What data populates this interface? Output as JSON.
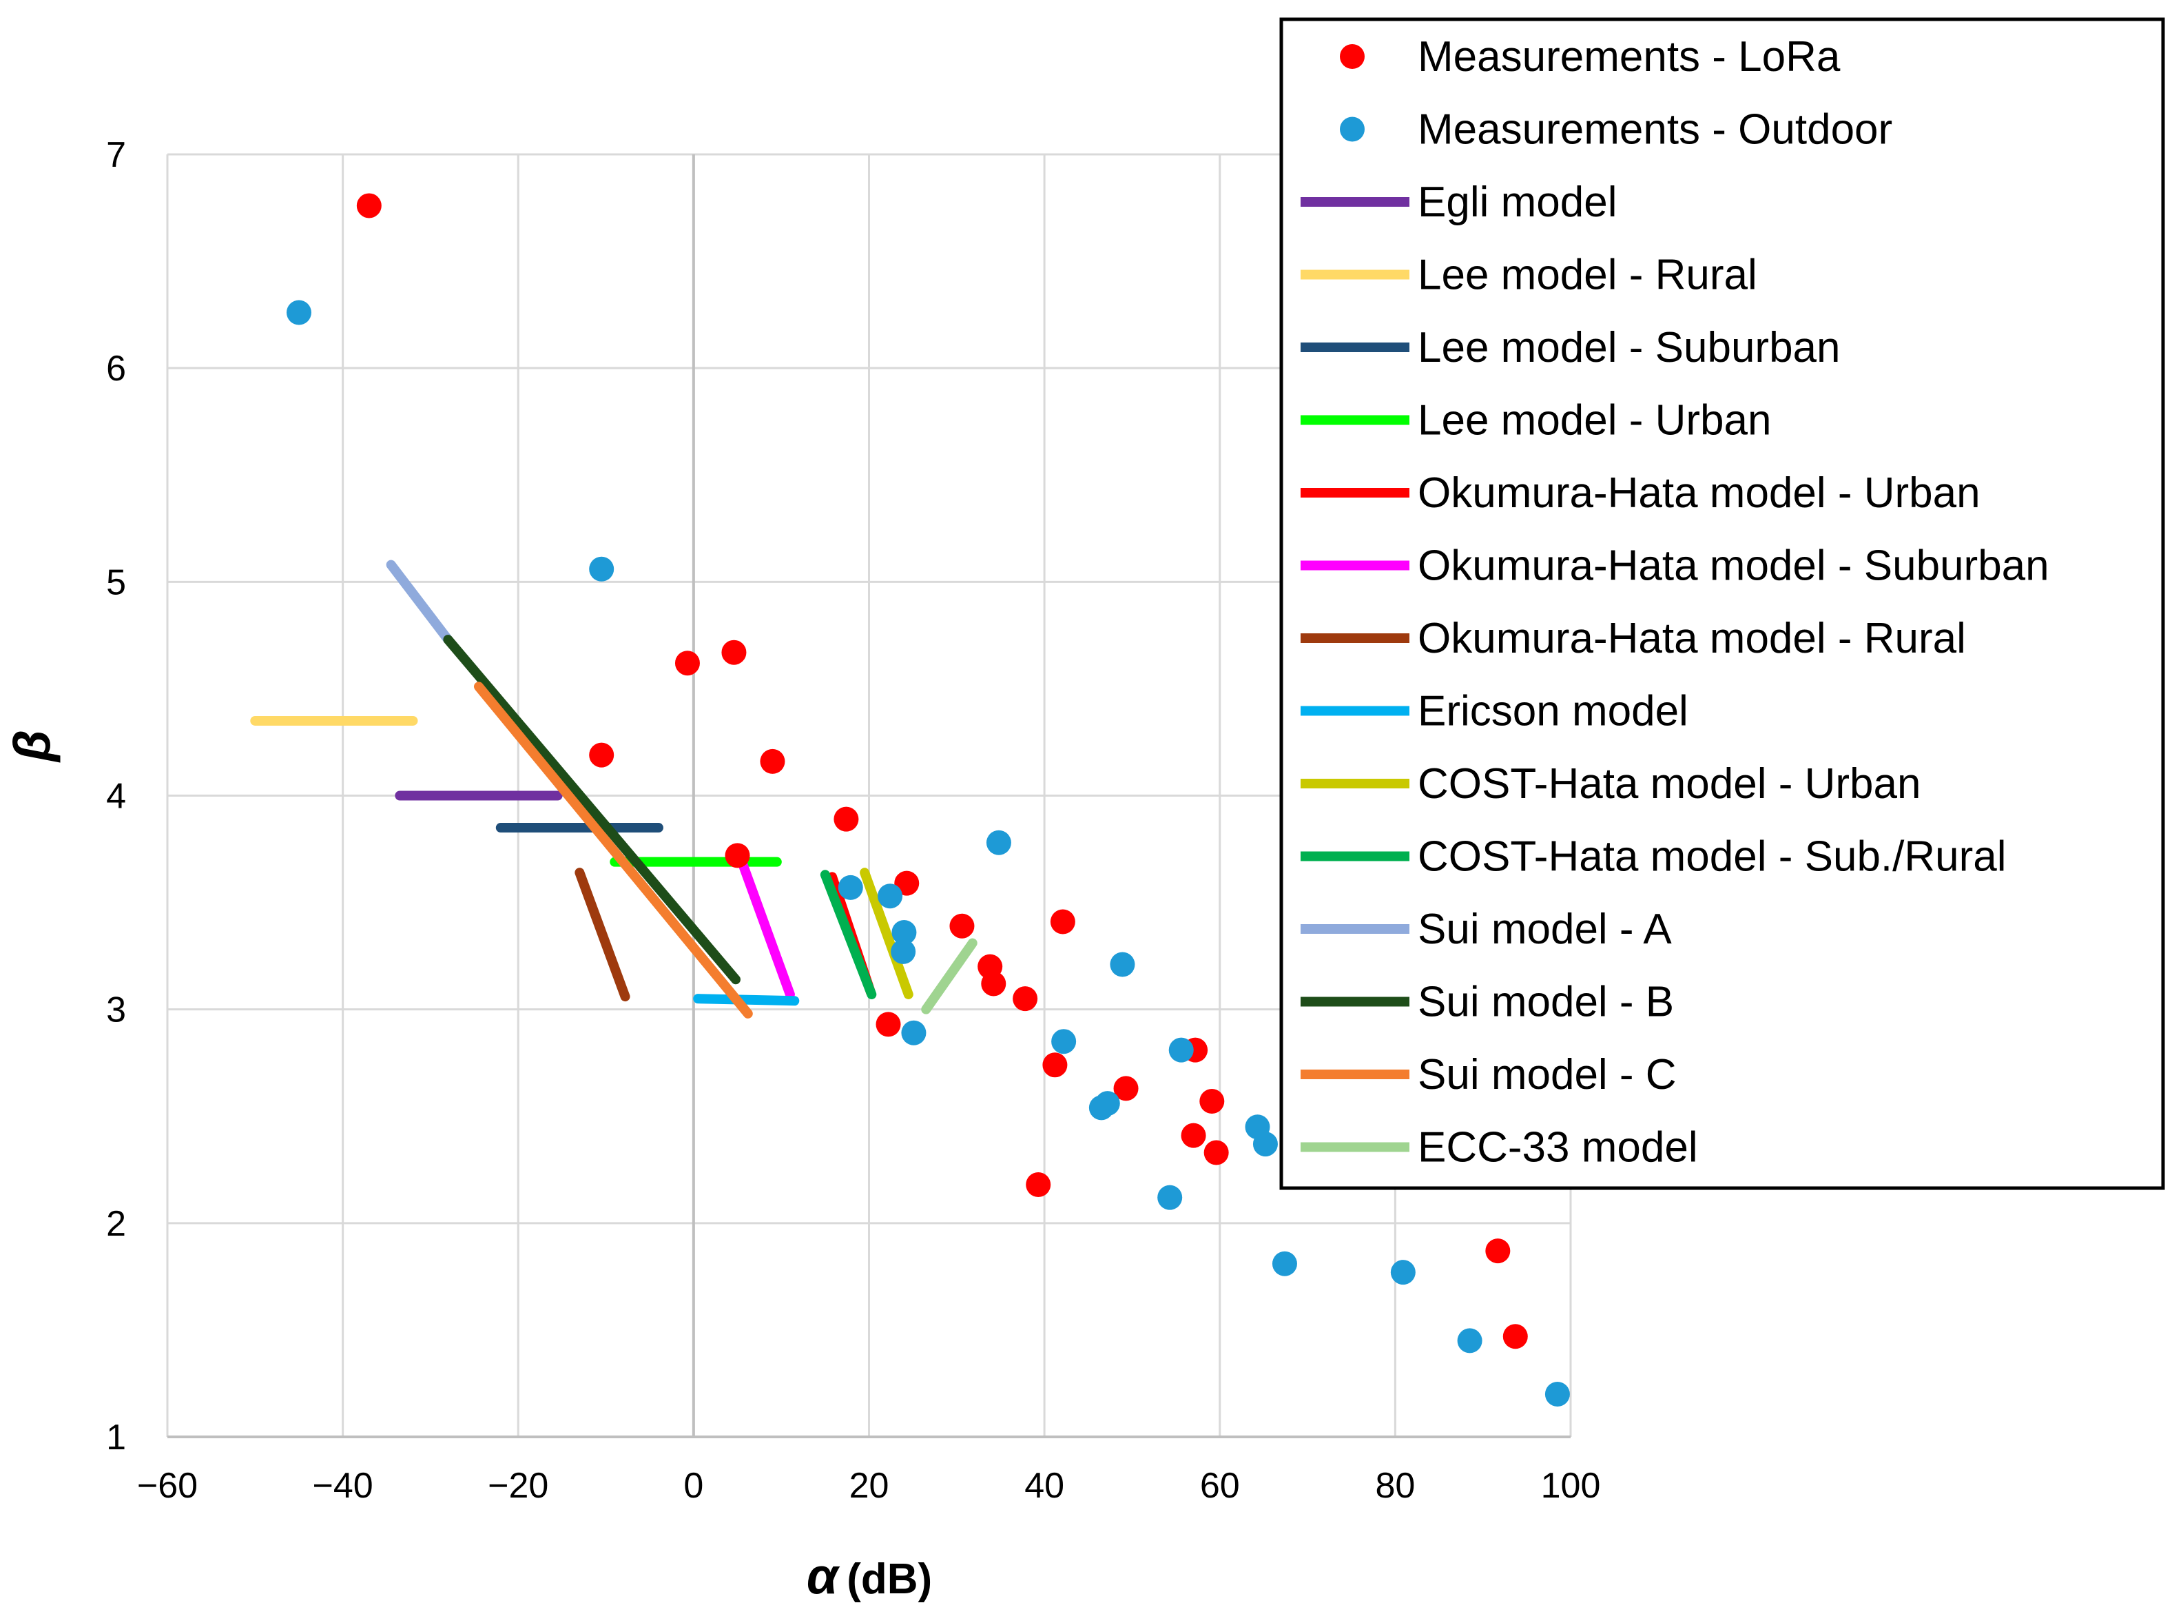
{
  "chart_data": {
    "type": "scatter",
    "xlabel_symbol": "α",
    "xlabel_unit": "(dB)",
    "ylabel": "β",
    "xlim": [
      -60,
      100
    ],
    "ylim": [
      1,
      7
    ],
    "xticks": [
      -60,
      -40,
      -20,
      0,
      20,
      40,
      60,
      80,
      100
    ],
    "yticks": [
      1,
      2,
      3,
      4,
      5,
      6,
      7
    ],
    "grid": true,
    "legend_position": "top-right",
    "scatter_series": [
      {
        "name": "Measurements - LoRa",
        "color": "#ff0000",
        "points": [
          [
            -37,
            6.76
          ],
          [
            -0.7,
            4.62
          ],
          [
            4.6,
            4.67
          ],
          [
            -10.5,
            4.19
          ],
          [
            9,
            4.16
          ],
          [
            5,
            3.72
          ],
          [
            17.4,
            3.89
          ],
          [
            24.3,
            3.59
          ],
          [
            22.2,
            2.93
          ],
          [
            30.6,
            3.39
          ],
          [
            33.8,
            3.2
          ],
          [
            34.2,
            3.12
          ],
          [
            37.8,
            3.05
          ],
          [
            42.1,
            3.41
          ],
          [
            41.2,
            2.74
          ],
          [
            49.3,
            2.63
          ],
          [
            57.2,
            2.81
          ],
          [
            59.1,
            2.57
          ],
          [
            57,
            2.41
          ],
          [
            59.6,
            2.33
          ],
          [
            39.3,
            2.18
          ],
          [
            91.7,
            1.87
          ],
          [
            93.7,
            1.47
          ]
        ]
      },
      {
        "name": "Measurements - Outdoor",
        "color": "#1e9ad6",
        "points": [
          [
            -45,
            6.26
          ],
          [
            -10.5,
            5.06
          ],
          [
            34.8,
            3.78
          ],
          [
            17.9,
            3.57
          ],
          [
            22.4,
            3.53
          ],
          [
            24,
            3.36
          ],
          [
            23.9,
            3.27
          ],
          [
            25.1,
            2.89
          ],
          [
            48.9,
            3.21
          ],
          [
            42.2,
            2.85
          ],
          [
            55.6,
            2.81
          ],
          [
            46.5,
            2.54
          ],
          [
            47.2,
            2.56
          ],
          [
            54.3,
            2.12
          ],
          [
            64.3,
            2.45
          ],
          [
            65.2,
            2.37
          ],
          [
            67.4,
            1.81
          ],
          [
            80.9,
            1.77
          ],
          [
            88.5,
            1.45
          ],
          [
            98.5,
            1.2
          ]
        ]
      }
    ],
    "line_series": [
      {
        "name": "Egli model",
        "color": "#7030a0",
        "points": [
          [
            -33.5,
            4.0
          ],
          [
            -15.5,
            4.0
          ]
        ]
      },
      {
        "name": "Lee model - Rural",
        "color": "#ffd966",
        "points": [
          [
            -50,
            4.35
          ],
          [
            -32,
            4.35
          ]
        ]
      },
      {
        "name": "Lee model - Suburban",
        "color": "#1f4e79",
        "points": [
          [
            -22,
            3.85
          ],
          [
            -4,
            3.85
          ]
        ]
      },
      {
        "name": "Lee model - Urban",
        "color": "#00ff00",
        "points": [
          [
            -9,
            3.69
          ],
          [
            9.5,
            3.69
          ]
        ]
      },
      {
        "name": "Okumura-Hata model - Urban",
        "color": "#ff0000",
        "points": [
          [
            15.8,
            3.62
          ],
          [
            20.2,
            3.08
          ]
        ]
      },
      {
        "name": "Okumura-Hata model - Suburban",
        "color": "#ff00ff",
        "points": [
          [
            5.6,
            3.68
          ],
          [
            11,
            3.07
          ]
        ]
      },
      {
        "name": "Okumura-Hata model - Rural",
        "color": "#9e3a0e",
        "points": [
          [
            -13,
            3.64
          ],
          [
            -7.8,
            3.06
          ]
        ]
      },
      {
        "name": "Ericson model",
        "color": "#00b0f0",
        "points": [
          [
            0.5,
            3.05
          ],
          [
            11.5,
            3.04
          ]
        ]
      },
      {
        "name": "COST-Hata model - Urban",
        "color": "#c9c900",
        "points": [
          [
            19.5,
            3.64
          ],
          [
            24.5,
            3.07
          ]
        ]
      },
      {
        "name": "COST-Hata model - Sub./Rural",
        "color": "#00b050",
        "points": [
          [
            15,
            3.63
          ],
          [
            20.3,
            3.07
          ]
        ]
      },
      {
        "name": "Sui model - A",
        "color": "#8faadc",
        "points": [
          [
            -34.5,
            5.08
          ],
          [
            -28,
            4.73
          ]
        ]
      },
      {
        "name": "Sui model - B",
        "color": "#1e4d19",
        "points": [
          [
            -28,
            4.73
          ],
          [
            4.8,
            3.14
          ]
        ]
      },
      {
        "name": "Sui model - C",
        "color": "#f47d2e",
        "points": [
          [
            -24.5,
            4.51
          ],
          [
            6.2,
            2.98
          ]
        ]
      },
      {
        "name": "ECC-33 model",
        "color": "#9fd490",
        "points": [
          [
            26.5,
            3.0
          ],
          [
            31.8,
            3.31
          ]
        ]
      }
    ],
    "legend": [
      {
        "label": "Measurements - LoRa",
        "kind": "marker",
        "color": "#ff0000"
      },
      {
        "label": "Measurements - Outdoor",
        "kind": "marker",
        "color": "#1e9ad6"
      },
      {
        "label": "Egli model",
        "kind": "line",
        "color": "#7030a0"
      },
      {
        "label": "Lee model - Rural",
        "kind": "line",
        "color": "#ffd966"
      },
      {
        "label": "Lee model - Suburban",
        "kind": "line",
        "color": "#1f4e79"
      },
      {
        "label": "Lee model - Urban",
        "kind": "line",
        "color": "#00ff00"
      },
      {
        "label": "Okumura-Hata model - Urban",
        "kind": "line",
        "color": "#ff0000"
      },
      {
        "label": "Okumura-Hata model - Suburban",
        "kind": "line",
        "color": "#ff00ff"
      },
      {
        "label": "Okumura-Hata model - Rural",
        "kind": "line",
        "color": "#9e3a0e"
      },
      {
        "label": "Ericson model",
        "kind": "line",
        "color": "#00b0f0"
      },
      {
        "label": "COST-Hata model - Urban",
        "kind": "line",
        "color": "#c9c900"
      },
      {
        "label": "COST-Hata model - Sub./Rural",
        "kind": "line",
        "color": "#00b050"
      },
      {
        "label": "Sui model - A",
        "kind": "line",
        "color": "#8faadc"
      },
      {
        "label": "Sui model - B",
        "kind": "line",
        "color": "#1e4d19"
      },
      {
        "label": "Sui model - C",
        "kind": "line",
        "color": "#f47d2e"
      },
      {
        "label": "ECC-33 model",
        "kind": "line",
        "color": "#9fd490"
      }
    ]
  }
}
